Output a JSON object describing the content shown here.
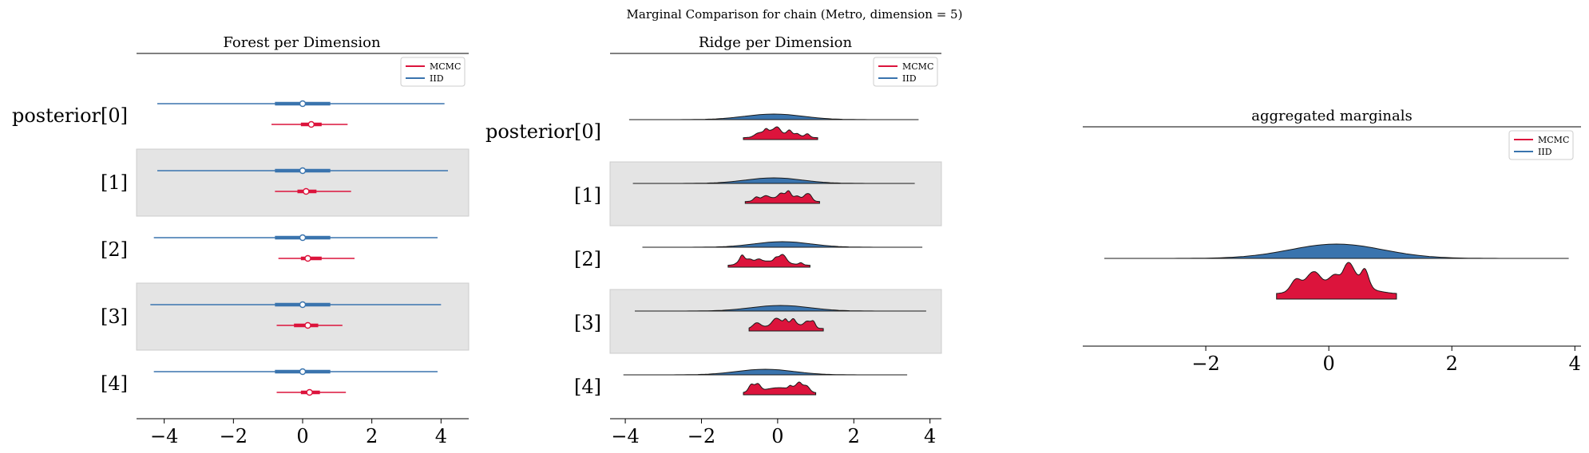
{
  "suptitle": "Marginal Comparison for chain (Metro, dimension = 5)",
  "colors": {
    "mcmc": "#DC143C",
    "iid": "#3A74AE",
    "band": "#E4E4E4",
    "axis": "#000000"
  },
  "legend": [
    "MCMC",
    "IID"
  ],
  "chart_data": [
    {
      "type": "forest",
      "title": "Forest per Dimension",
      "row_labels": [
        "posterior[0]",
        "[1]",
        "[2]",
        "[3]",
        "[4]"
      ],
      "xlim": [
        -4.8,
        4.8
      ],
      "xticks": [
        -4,
        -2,
        0,
        2,
        4
      ],
      "xtick_labels": [
        "−4",
        "−2",
        "0",
        "2",
        "4"
      ],
      "legend_position": "upper right",
      "series": [
        {
          "name": "IID",
          "rows": [
            {
              "hdi": [
                -4.2,
                4.1
              ],
              "iqr": [
                -0.8,
                0.8
              ],
              "median": 0.0
            },
            {
              "hdi": [
                -4.2,
                4.2
              ],
              "iqr": [
                -0.8,
                0.8
              ],
              "median": 0.0
            },
            {
              "hdi": [
                -4.3,
                3.9
              ],
              "iqr": [
                -0.8,
                0.8
              ],
              "median": 0.0
            },
            {
              "hdi": [
                -4.4,
                4.0
              ],
              "iqr": [
                -0.8,
                0.8
              ],
              "median": 0.0
            },
            {
              "hdi": [
                -4.3,
                3.9
              ],
              "iqr": [
                -0.8,
                0.8
              ],
              "median": 0.0
            }
          ]
        },
        {
          "name": "MCMC",
          "rows": [
            {
              "hdi": [
                -0.9,
                1.3
              ],
              "iqr": [
                -0.05,
                0.55
              ],
              "median": 0.25
            },
            {
              "hdi": [
                -0.8,
                1.4
              ],
              "iqr": [
                -0.15,
                0.4
              ],
              "median": 0.1
            },
            {
              "hdi": [
                -0.7,
                1.5
              ],
              "iqr": [
                -0.05,
                0.55
              ],
              "median": 0.15
            },
            {
              "hdi": [
                -0.75,
                1.15
              ],
              "iqr": [
                -0.25,
                0.45
              ],
              "median": 0.15
            },
            {
              "hdi": [
                -0.75,
                1.25
              ],
              "iqr": [
                -0.05,
                0.5
              ],
              "median": 0.2
            }
          ]
        }
      ]
    },
    {
      "type": "ridge",
      "title": "Ridge per Dimension",
      "row_labels": [
        "posterior[0]",
        "[1]",
        "[2]",
        "[3]",
        "[4]"
      ],
      "xlim": [
        -4.4,
        4.3
      ],
      "xticks": [
        -4,
        -2,
        0,
        2,
        4
      ],
      "xtick_labels": [
        "−4",
        "−2",
        "0",
        "2",
        "4"
      ],
      "legend_position": "upper right",
      "series": [
        {
          "name": "IID",
          "rows": [
            {
              "range": [
                -3.9,
                3.7
              ]
            },
            {
              "range": [
                -3.8,
                3.6
              ]
            },
            {
              "range": [
                -3.55,
                3.8
              ]
            },
            {
              "range": [
                -3.75,
                3.9
              ]
            },
            {
              "range": [
                -4.05,
                3.4
              ]
            }
          ]
        },
        {
          "name": "MCMC",
          "rows": [
            {
              "range": [
                -0.9,
                1.05
              ]
            },
            {
              "range": [
                -0.85,
                1.1
              ]
            },
            {
              "range": [
                -1.3,
                0.85
              ]
            },
            {
              "range": [
                -0.75,
                1.2
              ]
            },
            {
              "range": [
                -0.9,
                1.0
              ]
            }
          ]
        }
      ]
    },
    {
      "type": "density",
      "title": "aggregated marginals",
      "xlim": [
        -4.0,
        4.1
      ],
      "xticks": [
        -2,
        0,
        2,
        4
      ],
      "xtick_labels": [
        "−2",
        "0",
        "2",
        "4"
      ],
      "legend_position": "upper right",
      "series": [
        {
          "name": "IID",
          "range": [
            -3.65,
            3.9
          ]
        },
        {
          "name": "MCMC",
          "range": [
            -0.85,
            1.1
          ]
        }
      ]
    }
  ]
}
